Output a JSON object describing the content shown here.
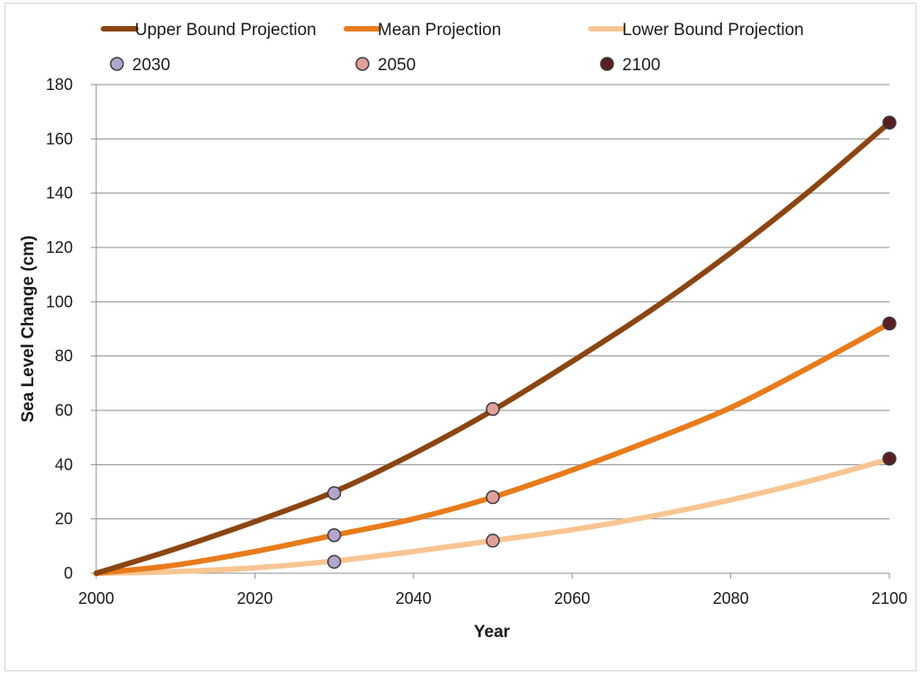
{
  "chart_data": {
    "type": "line",
    "xlabel": "Year",
    "ylabel": "Sea Level Change (cm)",
    "xlim": [
      2000,
      2100
    ],
    "ylim": [
      0,
      180
    ],
    "x_ticks": [
      2000,
      2020,
      2040,
      2060,
      2080,
      2100
    ],
    "y_ticks": [
      0,
      20,
      40,
      60,
      80,
      100,
      120,
      140,
      160,
      180
    ],
    "grid": "horizontal",
    "legend_position": "top",
    "x": [
      2000,
      2010,
      2020,
      2030,
      2040,
      2050,
      2060,
      2070,
      2080,
      2090,
      2100
    ],
    "series": [
      {
        "name": "Upper Bound Projection",
        "color": "#8b4513",
        "values": [
          0,
          9,
          19,
          30,
          44,
          60,
          78,
          97,
          118,
          141,
          166
        ]
      },
      {
        "name": "Mean Projection",
        "color": "#e87b1c",
        "values": [
          0,
          3,
          8,
          14,
          20,
          28,
          38,
          49,
          61,
          76,
          92
        ]
      },
      {
        "name": "Lower Bound Projection",
        "color": "#f8c592",
        "values": [
          0,
          0.6,
          2,
          4.5,
          8,
          12,
          16,
          21,
          27,
          34,
          42
        ]
      }
    ],
    "markers": [
      {
        "name": "2030",
        "color": "#b3a6cc",
        "points": [
          {
            "x": 2030,
            "y": 29.5
          },
          {
            "x": 2030,
            "y": 14
          },
          {
            "x": 2030,
            "y": 4.2
          }
        ]
      },
      {
        "name": "2050",
        "color": "#e0a09a",
        "points": [
          {
            "x": 2050,
            "y": 60.5
          },
          {
            "x": 2050,
            "y": 28
          },
          {
            "x": 2050,
            "y": 12
          }
        ]
      },
      {
        "name": "2100",
        "color": "#5a1e22",
        "points": [
          {
            "x": 2100,
            "y": 166
          },
          {
            "x": 2100,
            "y": 92
          },
          {
            "x": 2100,
            "y": 42.2
          }
        ]
      }
    ]
  }
}
